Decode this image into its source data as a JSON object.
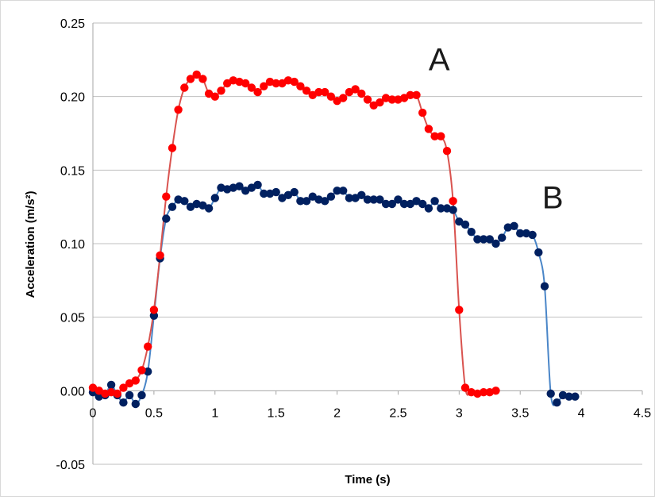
{
  "chart_data": {
    "type": "scatter",
    "title": "",
    "xlabel": "Time (s)",
    "ylabel": "Acceleration (m/s²)",
    "xlim": [
      0,
      4.5
    ],
    "ylim": [
      -0.05,
      0.25
    ],
    "x_ticks": [
      "0",
      "0.5",
      "1",
      "1.5",
      "2",
      "2.5",
      "3",
      "3.5",
      "4",
      "4.5"
    ],
    "y_ticks": [
      "-0.05",
      "0.00",
      "0.05",
      "0.10",
      "0.15",
      "0.20",
      "0.25"
    ],
    "grid": "horizontal",
    "markers": "filled circles joined by a smooth line",
    "annotations": [
      {
        "text": "A",
        "series": "A",
        "x": 2.75,
        "y": 0.218
      },
      {
        "text": "B",
        "series": "B",
        "x": 3.68,
        "y": 0.124
      }
    ],
    "series": [
      {
        "name": "A",
        "color": "#ff0000",
        "line_color": "#d9534f",
        "x": [
          0.0,
          0.05,
          0.1,
          0.15,
          0.2,
          0.25,
          0.3,
          0.35,
          0.4,
          0.45,
          0.5,
          0.55,
          0.6,
          0.65,
          0.7,
          0.75,
          0.8,
          0.85,
          0.9,
          0.95,
          1.0,
          1.05,
          1.1,
          1.15,
          1.2,
          1.25,
          1.3,
          1.35,
          1.4,
          1.45,
          1.5,
          1.55,
          1.6,
          1.65,
          1.7,
          1.75,
          1.8,
          1.85,
          1.9,
          1.95,
          2.0,
          2.05,
          2.1,
          2.15,
          2.2,
          2.25,
          2.3,
          2.35,
          2.4,
          2.45,
          2.5,
          2.55,
          2.6,
          2.65,
          2.7,
          2.75,
          2.8,
          2.85,
          2.9,
          2.95,
          3.0,
          3.05,
          3.1,
          3.15,
          3.2,
          3.25,
          3.3
        ],
        "y": [
          0.002,
          0.0,
          -0.002,
          -0.001,
          -0.002,
          0.002,
          0.005,
          0.007,
          0.014,
          0.03,
          0.055,
          0.092,
          0.132,
          0.165,
          0.191,
          0.206,
          0.212,
          0.215,
          0.212,
          0.202,
          0.2,
          0.204,
          0.209,
          0.211,
          0.21,
          0.209,
          0.206,
          0.203,
          0.207,
          0.21,
          0.209,
          0.209,
          0.211,
          0.21,
          0.207,
          0.204,
          0.201,
          0.203,
          0.203,
          0.2,
          0.197,
          0.199,
          0.203,
          0.205,
          0.202,
          0.198,
          0.194,
          0.196,
          0.199,
          0.198,
          0.198,
          0.199,
          0.201,
          0.201,
          0.189,
          0.178,
          0.173,
          0.173,
          0.163,
          0.129,
          0.055,
          0.002,
          -0.001,
          -0.002,
          -0.001,
          -0.001,
          0.0
        ]
      },
      {
        "name": "B",
        "color": "#002060",
        "line_color": "#4a86c8",
        "x": [
          0.0,
          0.05,
          0.1,
          0.15,
          0.2,
          0.25,
          0.3,
          0.35,
          0.4,
          0.45,
          0.5,
          0.55,
          0.6,
          0.65,
          0.7,
          0.75,
          0.8,
          0.85,
          0.9,
          0.95,
          1.0,
          1.05,
          1.1,
          1.15,
          1.2,
          1.25,
          1.3,
          1.35,
          1.4,
          1.45,
          1.5,
          1.55,
          1.6,
          1.65,
          1.7,
          1.75,
          1.8,
          1.85,
          1.9,
          1.95,
          2.0,
          2.05,
          2.1,
          2.15,
          2.2,
          2.25,
          2.3,
          2.35,
          2.4,
          2.45,
          2.5,
          2.55,
          2.6,
          2.65,
          2.7,
          2.75,
          2.8,
          2.85,
          2.9,
          2.95,
          3.0,
          3.05,
          3.1,
          3.15,
          3.2,
          3.25,
          3.3,
          3.35,
          3.4,
          3.45,
          3.5,
          3.55,
          3.6,
          3.65,
          3.7,
          3.75,
          3.8,
          3.85,
          3.9,
          3.95
        ],
        "y": [
          -0.001,
          -0.004,
          -0.003,
          0.004,
          -0.003,
          -0.008,
          -0.003,
          -0.009,
          -0.003,
          0.013,
          0.051,
          0.09,
          0.117,
          0.125,
          0.13,
          0.129,
          0.125,
          0.127,
          0.126,
          0.124,
          0.131,
          0.138,
          0.137,
          0.138,
          0.139,
          0.136,
          0.138,
          0.14,
          0.134,
          0.134,
          0.135,
          0.131,
          0.133,
          0.135,
          0.129,
          0.129,
          0.132,
          0.13,
          0.129,
          0.132,
          0.136,
          0.136,
          0.131,
          0.131,
          0.133,
          0.13,
          0.13,
          0.13,
          0.127,
          0.127,
          0.13,
          0.127,
          0.127,
          0.129,
          0.127,
          0.124,
          0.129,
          0.124,
          0.124,
          0.123,
          0.115,
          0.113,
          0.108,
          0.103,
          0.103,
          0.103,
          0.1,
          0.104,
          0.111,
          0.112,
          0.107,
          0.107,
          0.106,
          0.094,
          0.071,
          -0.002,
          -0.008,
          -0.003,
          -0.004,
          -0.004
        ]
      }
    ]
  }
}
